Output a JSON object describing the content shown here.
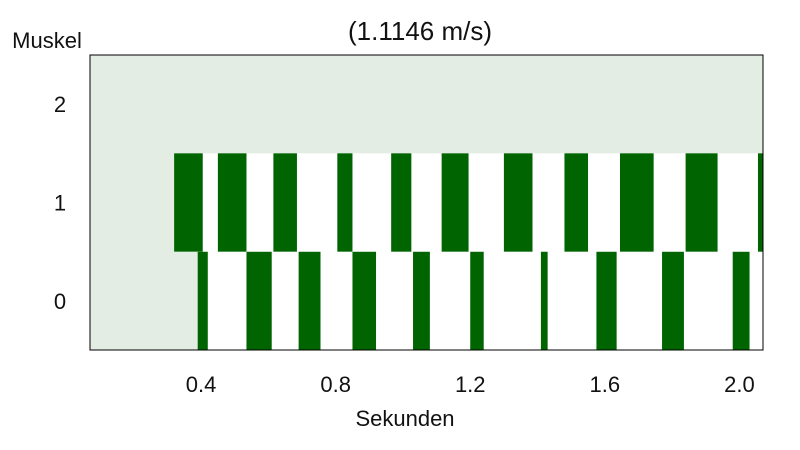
{
  "chart_data": {
    "type": "bar",
    "title": "(1.1146 m/s)",
    "xlabel": "Sekunden",
    "ylabel": "Muskel",
    "xlim": [
      0.07,
      2.07
    ],
    "ylim": [
      -0.5,
      2.5
    ],
    "x_ticks": [
      "0.4",
      "0.8",
      "1.2",
      "1.6",
      "2.0"
    ],
    "x_tick_values": [
      0.4,
      0.8,
      1.2,
      1.6,
      2.0
    ],
    "y_ticks": [
      "0",
      "1",
      "2"
    ],
    "y_tick_values": [
      0,
      1,
      2
    ],
    "background_color": "#e3ede3",
    "active_color": "#006400",
    "inactive_color": "#ffffff",
    "grid": false,
    "rows": [
      {
        "muscle": 0,
        "start": 0.39,
        "bursts": [
          [
            0.39,
            0.42
          ],
          [
            0.535,
            0.61
          ],
          [
            0.69,
            0.755
          ],
          [
            0.85,
            0.92
          ],
          [
            1.03,
            1.08
          ],
          [
            1.2,
            1.24
          ],
          [
            1.41,
            1.43
          ],
          [
            1.575,
            1.635
          ],
          [
            1.77,
            1.835
          ],
          [
            1.98,
            2.03
          ]
        ]
      },
      {
        "muscle": 1,
        "start": 0.32,
        "bursts": [
          [
            0.32,
            0.405
          ],
          [
            0.45,
            0.535
          ],
          [
            0.615,
            0.685
          ],
          [
            0.805,
            0.85
          ],
          [
            0.965,
            1.025
          ],
          [
            1.115,
            1.195
          ],
          [
            1.3,
            1.385
          ],
          [
            1.48,
            1.55
          ],
          [
            1.645,
            1.745
          ],
          [
            1.84,
            1.935
          ],
          [
            2.055,
            2.07
          ]
        ]
      }
    ]
  }
}
